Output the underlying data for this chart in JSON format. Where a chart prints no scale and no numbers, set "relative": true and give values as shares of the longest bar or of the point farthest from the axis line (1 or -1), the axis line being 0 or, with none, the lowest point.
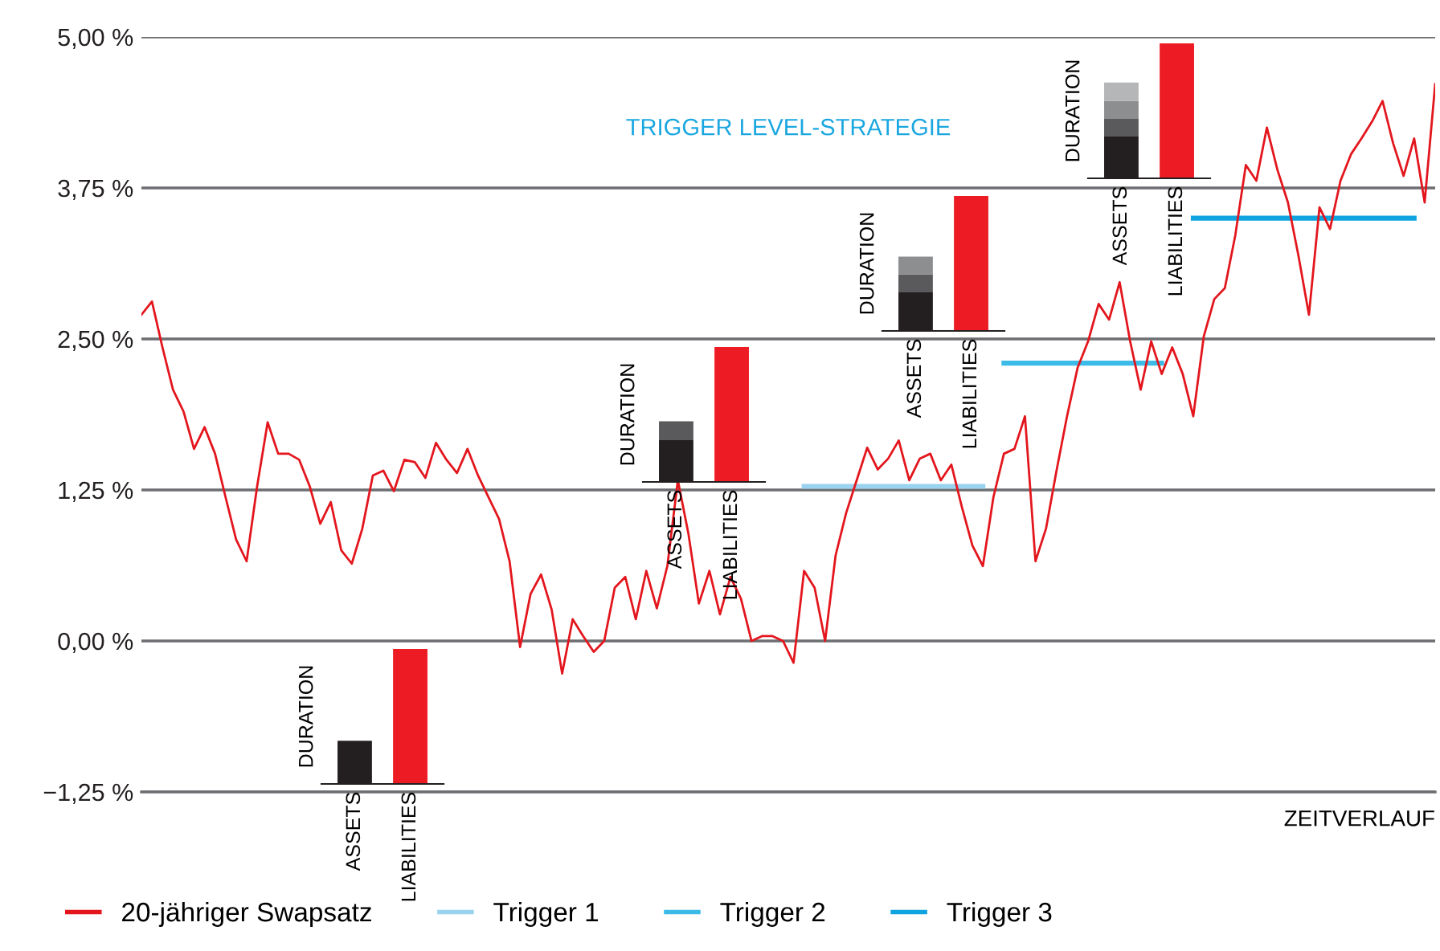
{
  "chart_data": [
    {
      "type": "line",
      "xlabel": "ZEITVERLAUF",
      "annotations": [
        "TRIGGER LEVEL-STRATEGIE"
      ],
      "categories": [
        null,
        null,
        null,
        null,
        null,
        null,
        null,
        null,
        null,
        null,
        null,
        null,
        null,
        null,
        null,
        null,
        null,
        null,
        null,
        null,
        null,
        null,
        null,
        null,
        null,
        null,
        null,
        null,
        null,
        null,
        null,
        null,
        null,
        null,
        null,
        null,
        null,
        null,
        null,
        null,
        null,
        null,
        null,
        null,
        null,
        null,
        null,
        null,
        null,
        null,
        null,
        null,
        null,
        null,
        null,
        null,
        null,
        null,
        null,
        null,
        null,
        null,
        null,
        null,
        null,
        null,
        null,
        null,
        null,
        null,
        null,
        null,
        null,
        null,
        null,
        null,
        null,
        null,
        null,
        null,
        null,
        null,
        null,
        null,
        null,
        null,
        null,
        null,
        null,
        null,
        null,
        null,
        null,
        null,
        null,
        null,
        null,
        null,
        null,
        null,
        null,
        null,
        null,
        null,
        null,
        null,
        null,
        null,
        null,
        null,
        null,
        null,
        null,
        null,
        null,
        null,
        null,
        null,
        null,
        null,
        null,
        null,
        null,
        null
      ],
      "series": [
        {
          "name": "20-jähriger Swapsatz",
          "color": "#e3161d",
          "values": [
            2.7,
            2.81,
            2.43,
            2.08,
            1.9,
            1.59,
            1.77,
            1.55,
            1.19,
            0.84,
            0.66,
            1.28,
            1.81,
            1.55,
            1.55,
            1.5,
            1.28,
            0.97,
            1.15,
            0.75,
            0.64,
            0.93,
            1.37,
            1.41,
            1.24,
            1.5,
            1.48,
            1.35,
            1.64,
            1.5,
            1.39,
            1.59,
            1.37,
            1.19,
            1.01,
            0.66,
            -0.05,
            0.39,
            0.55,
            0.26,
            -0.27,
            0.18,
            0.04,
            -0.09,
            0.0,
            0.44,
            0.53,
            0.18,
            0.58,
            0.27,
            0.62,
            1.33,
            0.89,
            0.31,
            0.58,
            0.22,
            0.53,
            0.35,
            0.0,
            0.04,
            0.04,
            0.0,
            -0.18,
            0.58,
            0.44,
            0.0,
            0.71,
            1.06,
            1.33,
            1.6,
            1.42,
            1.51,
            1.66,
            1.33,
            1.51,
            1.55,
            1.33,
            1.46,
            1.11,
            0.79,
            0.62,
            1.19,
            1.55,
            1.59,
            1.86,
            0.66,
            0.93,
            1.41,
            1.86,
            2.26,
            2.48,
            2.79,
            2.66,
            2.97,
            2.48,
            2.08,
            2.48,
            2.21,
            2.43,
            2.21,
            1.86,
            2.52,
            2.83,
            2.92,
            3.36,
            3.94,
            3.81,
            4.25,
            3.9,
            3.63,
            3.19,
            2.7,
            3.59,
            3.41,
            3.81,
            4.03,
            4.16,
            4.3,
            4.47,
            4.12,
            3.85,
            4.16,
            3.63,
            4.61
          ]
        },
        {
          "name": "Trigger 1",
          "color": "#99d3f0",
          "values": [
            null,
            null,
            null,
            null,
            null,
            null,
            null,
            null,
            null,
            null,
            null,
            null,
            null,
            null,
            null,
            null,
            null,
            null,
            null,
            null,
            null,
            null,
            null,
            null,
            null,
            null,
            null,
            null,
            null,
            null,
            null,
            null,
            null,
            null,
            null,
            null,
            null,
            null,
            null,
            null,
            null,
            null,
            null,
            null,
            null,
            null,
            null,
            null,
            null,
            null,
            null,
            null,
            null,
            null,
            null,
            null,
            null,
            null,
            null,
            null,
            null,
            null,
            null,
            1.28,
            1.28,
            1.28,
            1.28,
            1.28,
            1.28,
            1.28,
            1.28,
            1.28,
            1.28,
            1.28,
            1.28,
            1.28,
            1.28,
            1.28,
            1.28,
            1.28,
            1.28,
            null,
            null,
            null,
            null,
            null,
            null,
            null,
            null,
            null,
            null,
            null,
            null,
            null,
            null,
            null,
            null,
            null,
            null,
            null,
            null,
            null,
            null,
            null,
            null,
            null,
            null,
            null,
            null,
            null,
            null,
            null,
            null,
            null,
            null,
            null,
            null,
            null,
            null,
            null,
            null,
            null,
            null,
            null
          ]
        },
        {
          "name": "Trigger 2",
          "color": "#3dbbe8",
          "values": [
            null,
            null,
            null,
            null,
            null,
            null,
            null,
            null,
            null,
            null,
            null,
            null,
            null,
            null,
            null,
            null,
            null,
            null,
            null,
            null,
            null,
            null,
            null,
            null,
            null,
            null,
            null,
            null,
            null,
            null,
            null,
            null,
            null,
            null,
            null,
            null,
            null,
            null,
            null,
            null,
            null,
            null,
            null,
            null,
            null,
            null,
            null,
            null,
            null,
            null,
            null,
            null,
            null,
            null,
            null,
            null,
            null,
            null,
            null,
            null,
            null,
            null,
            null,
            null,
            null,
            null,
            null,
            null,
            null,
            null,
            null,
            null,
            null,
            null,
            null,
            null,
            null,
            null,
            null,
            null,
            null,
            null,
            2.3,
            2.3,
            2.3,
            2.3,
            2.3,
            2.3,
            2.3,
            2.3,
            2.3,
            2.3,
            2.3,
            2.3,
            2.3,
            2.3,
            2.3,
            2.3,
            null,
            null,
            null,
            null,
            null,
            null,
            null,
            null,
            null,
            null,
            null,
            null,
            null,
            null,
            null,
            null,
            null,
            null,
            null,
            null,
            null,
            null,
            null,
            null,
            null,
            null
          ]
        },
        {
          "name": "Trigger 3",
          "color": "#0fa4df",
          "values": [
            null,
            null,
            null,
            null,
            null,
            null,
            null,
            null,
            null,
            null,
            null,
            null,
            null,
            null,
            null,
            null,
            null,
            null,
            null,
            null,
            null,
            null,
            null,
            null,
            null,
            null,
            null,
            null,
            null,
            null,
            null,
            null,
            null,
            null,
            null,
            null,
            null,
            null,
            null,
            null,
            null,
            null,
            null,
            null,
            null,
            null,
            null,
            null,
            null,
            null,
            null,
            null,
            null,
            null,
            null,
            null,
            null,
            null,
            null,
            null,
            null,
            null,
            null,
            null,
            null,
            null,
            null,
            null,
            null,
            null,
            null,
            null,
            null,
            null,
            null,
            null,
            null,
            null,
            null,
            null,
            null,
            null,
            null,
            null,
            null,
            null,
            null,
            null,
            null,
            null,
            null,
            null,
            null,
            null,
            null,
            null,
            null,
            null,
            null,
            null,
            3.5,
            3.5,
            3.5,
            3.5,
            3.5,
            3.5,
            3.5,
            3.5,
            3.5,
            3.5,
            3.5,
            3.5,
            3.5,
            3.5,
            3.5,
            3.5,
            3.5,
            3.5,
            3.5,
            3.5,
            3.5,
            3.5,
            null,
            null
          ]
        }
      ],
      "ylim": [
        -1.25,
        5.0
      ],
      "yticks": [
        {
          "value": -1.25,
          "label": "−1,25 %"
        },
        {
          "value": 0,
          "label": "0,00 %"
        },
        {
          "value": 1.25,
          "label": "1,25 %"
        },
        {
          "value": 2.5,
          "label": "2,50 %"
        },
        {
          "value": 3.75,
          "label": "3,75 %"
        },
        {
          "value": 5.0,
          "label": "5,00 %"
        }
      ],
      "grid": "y",
      "legend": "bottom",
      "tick_labels": "y",
      "marker": "none",
      "line_style": "solid"
    },
    {
      "type": "bar",
      "stacked": true,
      "relative": true,
      "ylabel": "DURATION",
      "categories": [
        "ASSETS",
        "LIABILITIES"
      ],
      "tick_labels": "x",
      "series": [
        {
          "color": "#231f20",
          "values": [
            0.32,
            null
          ]
        },
        {
          "color": "#ed1c24",
          "values": [
            null,
            1
          ]
        }
      ]
    },
    {
      "type": "bar",
      "stacked": true,
      "relative": true,
      "ylabel": "DURATION",
      "categories": [
        "ASSETS",
        "LIABILITIES"
      ],
      "tick_labels": "x",
      "series": [
        {
          "color": "#231f20",
          "values": [
            0.31,
            null
          ]
        },
        {
          "color": "#5a5a5c",
          "values": [
            0.14,
            null
          ]
        },
        {
          "color": "#ed1c24",
          "values": [
            null,
            1
          ]
        }
      ]
    },
    {
      "type": "bar",
      "stacked": true,
      "relative": true,
      "ylabel": "DURATION",
      "categories": [
        "ASSETS",
        "LIABILITIES"
      ],
      "tick_labels": "x",
      "series": [
        {
          "color": "#231f20",
          "values": [
            0.29,
            null
          ]
        },
        {
          "color": "#5a5a5c",
          "values": [
            0.13,
            null
          ]
        },
        {
          "color": "#8d8e90",
          "values": [
            0.13,
            null
          ]
        },
        {
          "color": "#ed1c24",
          "values": [
            null,
            1
          ]
        }
      ]
    },
    {
      "type": "bar",
      "stacked": true,
      "relative": true,
      "ylabel": "DURATION",
      "categories": [
        "ASSETS",
        "LIABILITIES"
      ],
      "tick_labels": "x",
      "series": [
        {
          "color": "#231f20",
          "values": [
            0.31,
            null
          ]
        },
        {
          "color": "#5a5a5c",
          "values": [
            0.13,
            null
          ]
        },
        {
          "color": "#8d8e90",
          "values": [
            0.135,
            null
          ]
        },
        {
          "color": "#b5b6b8",
          "values": [
            0.135,
            null
          ]
        },
        {
          "color": "#ed1c24",
          "values": [
            null,
            1
          ]
        }
      ]
    }
  ]
}
